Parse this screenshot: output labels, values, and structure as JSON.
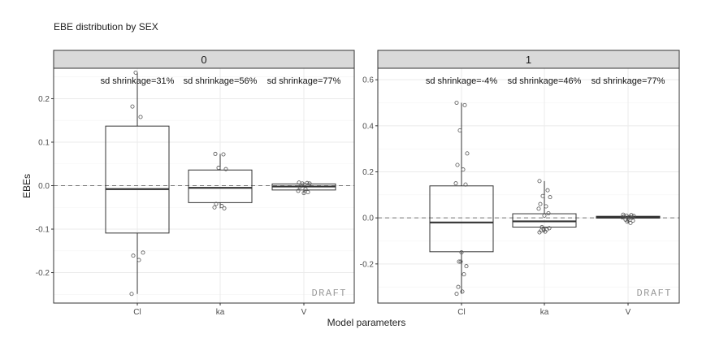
{
  "chart_data": {
    "type": "box",
    "title": "EBE distribution by SEX",
    "xlabel": "Model parameters",
    "ylabel": "EBEs",
    "watermark": "DRAFT",
    "categories": [
      "Cl",
      "ka",
      "V"
    ],
    "reference_line_y": 0,
    "grid": true,
    "colors": {
      "strip_fill": "#d9d9d9",
      "grid": "#ebebeb",
      "box_stroke": "#333333",
      "points": "#555555",
      "watermark": "#9a9a9a"
    },
    "panels": [
      {
        "strip": "0",
        "ylim": [
          -0.27,
          0.27
        ],
        "yticks": [
          0.2,
          0.1,
          0.0,
          -0.1,
          -0.2
        ],
        "ytick_labels": [
          "0.2",
          "0.1",
          "0.0",
          "-0.1",
          "-0.2"
        ],
        "annotations": [
          "sd shrinkage=31%",
          "sd shrinkage=56%",
          "sd shrinkage=77%"
        ],
        "boxes": [
          {
            "category": "Cl",
            "q1": -0.109,
            "median": -0.008,
            "q3": 0.137,
            "whisker_low": -0.249,
            "whisker_high": 0.26
          },
          {
            "category": "ka",
            "q1": -0.039,
            "median": -0.005,
            "q3": 0.036,
            "whisker_low": -0.052,
            "whisker_high": 0.073
          },
          {
            "category": "V",
            "q1": -0.01,
            "median": -0.002,
            "q3": 0.004,
            "whisker_low": -0.018,
            "whisker_high": 0.008
          }
        ],
        "points": [
          {
            "category": "Cl",
            "values": [
              0.182,
              0.158,
              0.26,
              -0.154,
              -0.161,
              -0.171,
              -0.249
            ]
          },
          {
            "category": "ka",
            "values": [
              0.073,
              0.072,
              0.041,
              0.038,
              -0.042,
              -0.047,
              -0.05,
              -0.052
            ]
          },
          {
            "category": "V",
            "values": [
              0.007,
              0.006,
              0.005,
              0.005,
              -0.003,
              -0.008,
              -0.012,
              -0.015,
              -0.017
            ]
          }
        ]
      },
      {
        "strip": "1",
        "ylim": [
          -0.37,
          0.65
        ],
        "yticks": [
          0.6,
          0.4,
          0.2,
          0.0,
          -0.2
        ],
        "ytick_labels": [
          "0.6",
          "0.4",
          "0.2",
          "0.0",
          "-0.2"
        ],
        "annotations": [
          "sd shrinkage=-4%",
          "sd shrinkage=46%",
          "sd shrinkage=77%"
        ],
        "boxes": [
          {
            "category": "Cl",
            "q1": -0.147,
            "median": -0.02,
            "q3": 0.139,
            "whisker_low": -0.33,
            "whisker_high": 0.5
          },
          {
            "category": "ka",
            "q1": -0.04,
            "median": -0.015,
            "q3": 0.018,
            "whisker_low": -0.063,
            "whisker_high": 0.16
          },
          {
            "category": "V",
            "q1": -0.001,
            "median": 0.002,
            "q3": 0.007,
            "whisker_low": -0.022,
            "whisker_high": 0.014
          }
        ],
        "points": [
          {
            "category": "Cl",
            "values": [
              0.5,
              0.49,
              0.38,
              0.28,
              0.23,
              0.21,
              0.15,
              0.145,
              -0.15,
              -0.19,
              -0.21,
              -0.19,
              -0.245,
              -0.3,
              -0.32,
              -0.33
            ]
          },
          {
            "category": "ka",
            "values": [
              0.16,
              0.12,
              0.095,
              0.09,
              0.06,
              0.05,
              0.04,
              0.02,
              0.01,
              -0.04,
              -0.045,
              -0.05,
              -0.05,
              -0.055,
              -0.06,
              -0.063
            ]
          },
          {
            "category": "V",
            "values": [
              0.014,
              0.012,
              0.01,
              0.008,
              0.006,
              0.004,
              0.002,
              0.0,
              -0.004,
              -0.008,
              -0.012,
              -0.016,
              -0.022
            ]
          }
        ]
      }
    ]
  }
}
